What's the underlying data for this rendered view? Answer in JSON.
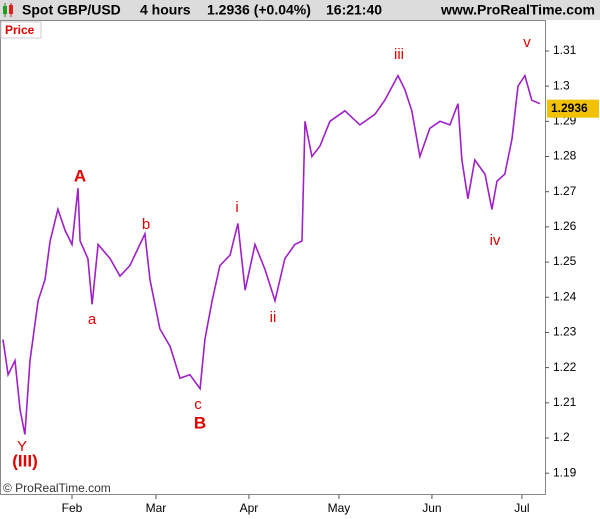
{
  "chart_data": {
    "type": "line",
    "header": {
      "symbol": "Spot GBP/USD",
      "period": "4 hours",
      "quote": "1.2936 (+0.04%)",
      "time": "16:21:40",
      "site": "www.ProRealTime.com"
    },
    "panel_label": "Price",
    "copyright": "© ProRealTime.com",
    "last_price": 1.2936,
    "annotations": [
      "A",
      "a",
      "b",
      "B",
      "c",
      "i",
      "ii",
      "iii",
      "iv",
      "v",
      "(III)",
      "Y"
    ],
    "x": [
      -23,
      -21.3,
      -19,
      -17.3,
      -15.7,
      -14,
      -11.3,
      -9,
      -7.3,
      -4.7,
      -2.3,
      0,
      2,
      2.7,
      5.3,
      6.7,
      8.7,
      12.7,
      16,
      19.3,
      24.3,
      26,
      29.3,
      32.7,
      36,
      39.3,
      42.7,
      44.3,
      46.7,
      49.3,
      52.7,
      55.3,
      57.7,
      61,
      64.3,
      67.7,
      71,
      74.3,
      76.7,
      77.7,
      80,
      82.7,
      86,
      91,
      96,
      101,
      104.3,
      108.7,
      111,
      113.3,
      116,
      119.3,
      122.7,
      126,
      128.7,
      130,
      132,
      134.3,
      137.7,
      140,
      141.7,
      144.3,
      146.7,
      148.7,
      151,
      153.3,
      156
    ],
    "series": [
      {
        "color": "#a020c8",
        "values": [
          1.228,
          1.218,
          1.222,
          1.208,
          1.201,
          1.222,
          1.239,
          1.245,
          1.256,
          1.265,
          1.259,
          1.255,
          1.271,
          1.256,
          1.251,
          1.238,
          1.255,
          1.251,
          1.246,
          1.249,
          1.258,
          1.245,
          1.231,
          1.226,
          1.217,
          1.218,
          1.214,
          1.228,
          1.239,
          1.249,
          1.252,
          1.261,
          1.242,
          1.255,
          1.248,
          1.239,
          1.251,
          1.255,
          1.256,
          1.29,
          1.28,
          1.283,
          1.29,
          1.293,
          1.289,
          1.292,
          1.296,
          1.303,
          1.299,
          1.293,
          1.28,
          1.288,
          1.29,
          1.289,
          1.295,
          1.279,
          1.268,
          1.279,
          1.275,
          1.265,
          1.273,
          1.275,
          1.285,
          1.3,
          1.303,
          1.296,
          1.295
        ]
      }
    ],
    "xlim": [
      -24,
      157.7
    ],
    "xticks": [
      {
        "value": 0,
        "label": "Feb"
      },
      {
        "value": 28,
        "label": "Mar"
      },
      {
        "value": 59,
        "label": "Apr"
      },
      {
        "value": 89,
        "label": "May"
      },
      {
        "value": 120,
        "label": "Jun"
      },
      {
        "value": 150,
        "label": "Jul"
      }
    ],
    "ylim": [
      1.1838,
      1.3188
    ],
    "yticks": [
      1.19,
      1.2,
      1.21,
      1.22,
      1.23,
      1.24,
      1.25,
      1.26,
      1.27,
      1.28,
      1.29,
      1.3,
      1.31
    ]
  }
}
